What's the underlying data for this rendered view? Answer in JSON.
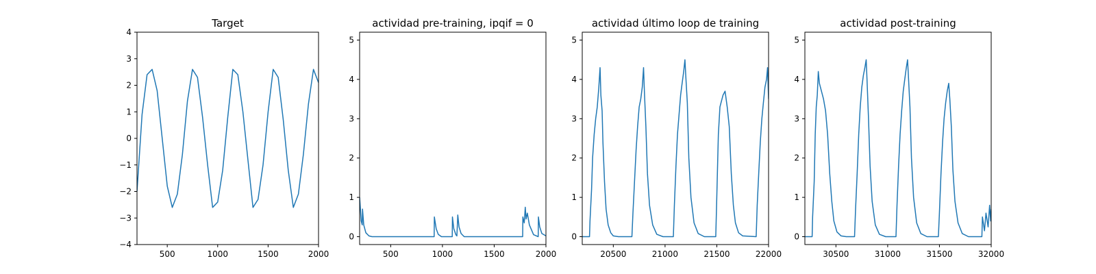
{
  "figure": {
    "line_color": "#1f77b4",
    "background": "#ffffff"
  },
  "chart_data": [
    {
      "type": "line",
      "title": "Target",
      "xlim": [
        200,
        2000
      ],
      "ylim": [
        -4,
        4
      ],
      "xticks": [
        500,
        1000,
        1500,
        2000
      ],
      "yticks": [
        -4,
        -3,
        -2,
        -1,
        0,
        1,
        2,
        3,
        4
      ],
      "ytick_labels": [
        "−4",
        "−3",
        "−2",
        "−1",
        "0",
        "1",
        "2",
        "3",
        "4"
      ],
      "grid": false,
      "series": [
        {
          "x": [
            200,
            250,
            300,
            350,
            400,
            450,
            500,
            550,
            600,
            650,
            700,
            750,
            800,
            850,
            900,
            950,
            1000,
            1050,
            1100,
            1150,
            1200,
            1250,
            1300,
            1350,
            1400,
            1450,
            1500,
            1550,
            1600,
            1650,
            1700,
            1750,
            1800,
            1850,
            1900,
            1950,
            2000
          ],
          "y": [
            -2.0,
            0.9,
            2.4,
            2.6,
            1.8,
            0.0,
            -1.8,
            -2.6,
            -2.1,
            -0.6,
            1.4,
            2.6,
            2.3,
            0.8,
            -1.0,
            -2.6,
            -2.4,
            -1.2,
            0.8,
            2.6,
            2.4,
            1.0,
            -0.8,
            -2.6,
            -2.3,
            -1.0,
            1.0,
            2.6,
            2.3,
            0.7,
            -1.2,
            -2.6,
            -2.1,
            -0.6,
            1.3,
            2.6,
            2.1
          ]
        }
      ]
    },
    {
      "type": "line",
      "title": "actividad pre-training, ipqif = 0",
      "xlim": [
        200,
        2000
      ],
      "ylim": [
        -0.2,
        5.2
      ],
      "xticks": [
        500,
        1000,
        1500,
        2000
      ],
      "yticks": [
        0,
        1,
        2,
        3,
        4,
        5
      ],
      "ytick_labels": [
        "0",
        "1",
        "2",
        "3",
        "4",
        "5"
      ],
      "grid": false,
      "series": [
        {
          "x": [
            200,
            205,
            215,
            225,
            228,
            240,
            260,
            290,
            320,
            900,
            920,
            922,
            940,
            960,
            990,
            1080,
            1095,
            1097,
            1110,
            1130,
            1140,
            1148,
            1160,
            1180,
            1210,
            1760,
            1775,
            1777,
            1790,
            1800,
            1808,
            1820,
            1840,
            1880,
            1925,
            1927,
            1940,
            1960,
            2000
          ],
          "y": [
            1.0,
            0.8,
            0.4,
            0.3,
            0.7,
            0.3,
            0.1,
            0.02,
            0.0,
            0.0,
            0.0,
            0.5,
            0.2,
            0.06,
            0.0,
            0.0,
            0.0,
            0.5,
            0.2,
            0.05,
            0.02,
            0.55,
            0.25,
            0.08,
            0.0,
            0.0,
            0.0,
            0.5,
            0.35,
            0.75,
            0.45,
            0.6,
            0.3,
            0.05,
            0.0,
            0.5,
            0.25,
            0.08,
            0.02
          ]
        }
      ]
    },
    {
      "type": "line",
      "title": "actividad último loop de training",
      "xlim": [
        20200,
        22000
      ],
      "ylim": [
        -0.2,
        5.2
      ],
      "xticks": [
        20500,
        21000,
        21500,
        22000
      ],
      "yticks": [
        0,
        1,
        2,
        3,
        4,
        5
      ],
      "ytick_labels": [
        "0",
        "1",
        "2",
        "3",
        "4",
        "5"
      ],
      "grid": false,
      "series": [
        {
          "x": [
            20200,
            20270,
            20275,
            20290,
            20300,
            20315,
            20330,
            20345,
            20360,
            20372,
            20380,
            20392,
            20400,
            20415,
            20430,
            20450,
            20475,
            20500,
            20550,
            20600,
            20680,
            20690,
            20705,
            20720,
            20735,
            20750,
            20765,
            20780,
            20792,
            20800,
            20815,
            20830,
            20850,
            20880,
            20920,
            20980,
            21080,
            21090,
            21105,
            21120,
            21135,
            21150,
            21165,
            21180,
            21192,
            21200,
            21215,
            21230,
            21250,
            21280,
            21320,
            21380,
            21490,
            21500,
            21515,
            21530,
            21540,
            21560,
            21580,
            21600,
            21620,
            21640,
            21660,
            21680,
            21710,
            21750,
            21880,
            21890,
            21905,
            21920,
            21935,
            21950,
            21965,
            21980,
            21990,
            22000
          ],
          "y": [
            0.0,
            0.0,
            0.4,
            1.2,
            2.0,
            2.6,
            3.0,
            3.3,
            3.8,
            4.3,
            3.6,
            3.2,
            2.4,
            1.4,
            0.7,
            0.3,
            0.1,
            0.02,
            0.0,
            0.0,
            0.0,
            0.6,
            1.4,
            2.2,
            2.8,
            3.3,
            3.5,
            3.8,
            4.3,
            3.7,
            2.8,
            1.6,
            0.8,
            0.3,
            0.06,
            0.0,
            0.0,
            0.8,
            1.8,
            2.6,
            3.1,
            3.6,
            3.9,
            4.2,
            4.5,
            4.1,
            3.4,
            2.0,
            1.0,
            0.35,
            0.08,
            0.0,
            0.0,
            1.0,
            2.6,
            3.3,
            3.4,
            3.6,
            3.7,
            3.3,
            2.8,
            1.6,
            0.8,
            0.35,
            0.1,
            0.02,
            0.0,
            0.8,
            1.6,
            2.4,
            3.0,
            3.4,
            3.8,
            4.0,
            4.3,
            3.5
          ]
        }
      ]
    },
    {
      "type": "line",
      "title": "actividad post-training",
      "xlim": [
        30200,
        32000
      ],
      "ylim": [
        -0.2,
        5.2
      ],
      "xticks": [
        30500,
        31000,
        31500,
        32000
      ],
      "yticks": [
        0,
        1,
        2,
        3,
        4,
        5
      ],
      "ytick_labels": [
        "0",
        "1",
        "2",
        "3",
        "4",
        "5"
      ],
      "grid": false,
      "series": [
        {
          "x": [
            30200,
            30270,
            30275,
            30290,
            30300,
            30310,
            30320,
            30330,
            30340,
            30360,
            30380,
            30400,
            30420,
            30440,
            30460,
            30480,
            30510,
            30550,
            30600,
            30680,
            30690,
            30705,
            30720,
            30735,
            30750,
            30765,
            30780,
            30792,
            30800,
            30815,
            30830,
            30850,
            30880,
            30920,
            30980,
            31080,
            31090,
            31105,
            31120,
            31135,
            31150,
            31165,
            31180,
            31192,
            31200,
            31215,
            31230,
            31250,
            31280,
            31320,
            31380,
            31490,
            31500,
            31515,
            31530,
            31545,
            31560,
            31575,
            31590,
            31600,
            31615,
            31630,
            31650,
            31680,
            31720,
            31780,
            31910,
            31915,
            31935,
            31950,
            31970,
            31985,
            31995,
            32000
          ],
          "y": [
            0.0,
            0.0,
            0.5,
            1.4,
            2.6,
            3.3,
            3.6,
            4.2,
            3.9,
            3.7,
            3.5,
            3.2,
            2.6,
            1.6,
            0.9,
            0.4,
            0.12,
            0.02,
            0.0,
            0.0,
            0.7,
            1.6,
            2.6,
            3.3,
            3.8,
            4.1,
            4.3,
            4.5,
            4.0,
            3.0,
            1.8,
            0.9,
            0.3,
            0.06,
            0.0,
            0.0,
            0.8,
            1.8,
            2.6,
            3.2,
            3.7,
            4.0,
            4.3,
            4.5,
            4.1,
            3.3,
            2.0,
            1.0,
            0.35,
            0.08,
            0.0,
            0.0,
            0.6,
            1.6,
            2.4,
            3.0,
            3.4,
            3.7,
            3.9,
            3.5,
            2.8,
            1.7,
            0.9,
            0.35,
            0.08,
            0.0,
            0.0,
            0.5,
            0.15,
            0.6,
            0.25,
            0.8,
            0.4,
            0.7
          ]
        }
      ]
    }
  ]
}
